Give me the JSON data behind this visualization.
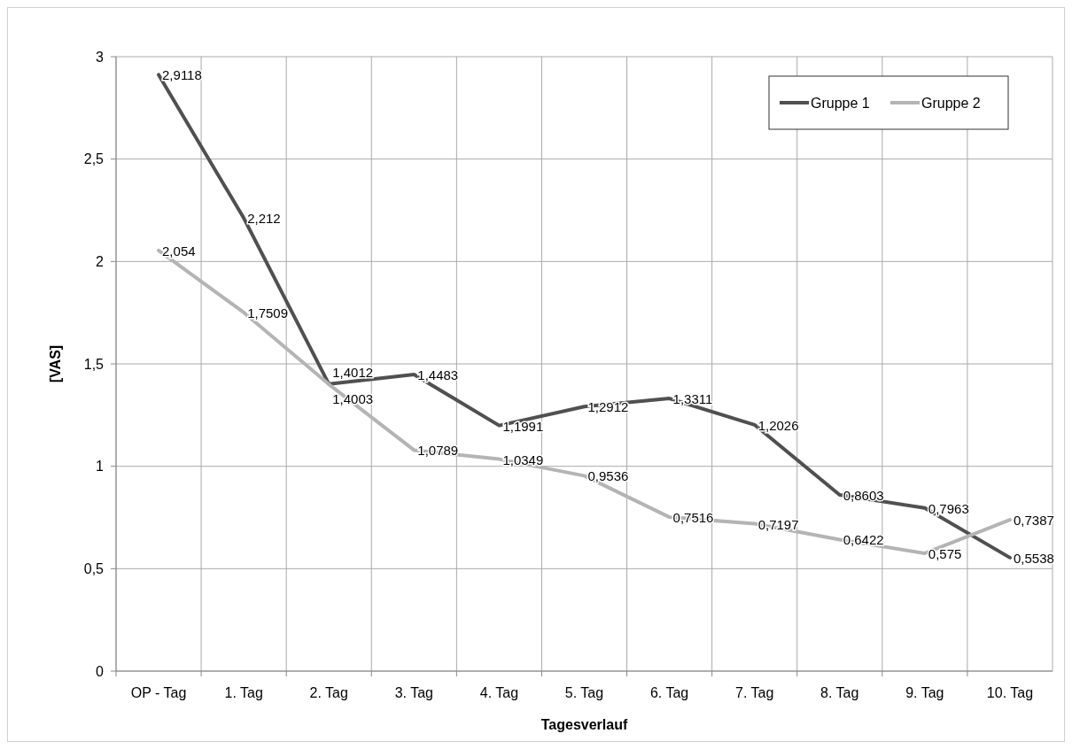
{
  "chart_data": {
    "type": "line",
    "xlabel": "Tagesverlauf",
    "ylabel": "[VAS]",
    "categories": [
      "OP - Tag",
      "1. Tag",
      "2. Tag",
      "3. Tag",
      "4. Tag",
      "5. Tag",
      "6. Tag",
      "7. Tag",
      "8. Tag",
      "9. Tag",
      "10. Tag"
    ],
    "series": [
      {
        "name": "Gruppe 1",
        "color": "#505050",
        "values": [
          2.9118,
          2.212,
          1.4012,
          1.4483,
          1.1991,
          1.2912,
          1.3311,
          1.2026,
          0.8603,
          0.7963,
          0.5538
        ],
        "value_labels": [
          "2,9118",
          "2,212",
          "1,4012",
          "1,4483",
          "1,1991",
          "1,2912",
          "1,3311",
          "1,2026",
          "0,8603",
          "0,7963",
          "0,5538"
        ]
      },
      {
        "name": "Gruppe 2",
        "color": "#b4b4b4",
        "values": [
          2.054,
          1.7509,
          1.4003,
          1.0789,
          1.0349,
          0.9536,
          0.7516,
          0.7197,
          0.6422,
          0.575,
          0.7387
        ],
        "value_labels": [
          "2,054",
          "1,7509",
          "1,4003",
          "1,0789",
          "1,0349",
          "0,9536",
          "0,7516",
          "0,7197",
          "0,6422",
          "0,575",
          "0,7387"
        ]
      }
    ],
    "ylim": [
      0,
      3
    ],
    "yticks": [
      {
        "value": 0,
        "label": "0"
      },
      {
        "value": 0.5,
        "label": "0,5"
      },
      {
        "value": 1,
        "label": "1"
      },
      {
        "value": 1.5,
        "label": "1,5"
      },
      {
        "value": 2,
        "label": "2"
      },
      {
        "value": 2.5,
        "label": "2,5"
      },
      {
        "value": 3,
        "label": "3"
      }
    ],
    "grid": true,
    "legend": "top right",
    "marker": "none",
    "line_style": "solid"
  }
}
